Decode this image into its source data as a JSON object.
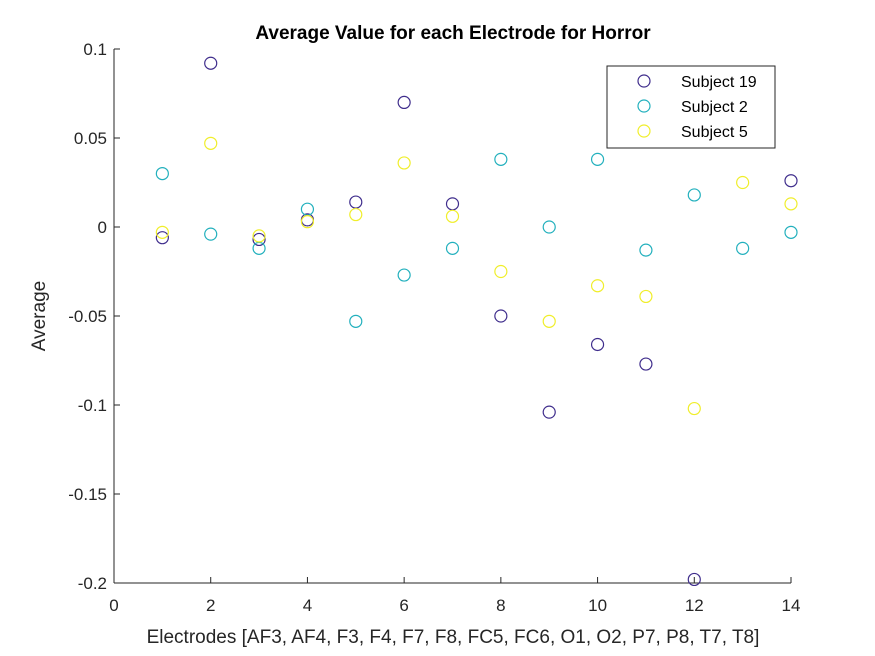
{
  "chart_data": {
    "type": "scatter",
    "title": "Average Value for each Electrode for Horror",
    "xlabel": "Electrodes [AF3, AF4, F3, F4, F7, F8, FC5, FC6, O1, O2, P7, P8, T7, T8]",
    "ylabel": "Average",
    "xlim": [
      0,
      14
    ],
    "ylim": [
      -0.2,
      0.1
    ],
    "xticks": [
      "0",
      "2",
      "4",
      "6",
      "8",
      "10",
      "12",
      "14"
    ],
    "yticks": [
      "0.1",
      "0.05",
      "0",
      "-0.05",
      "-0.1",
      "-0.15",
      "-0.2"
    ],
    "grid": false,
    "legend_position": "top-right",
    "series": [
      {
        "name": "Subject 19",
        "color": "#3f2d8c",
        "x": [
          1,
          2,
          3,
          4,
          5,
          6,
          7,
          8,
          9,
          10,
          11,
          12,
          13,
          14
        ],
        "y": [
          -0.006,
          0.092,
          -0.007,
          0.004,
          0.014,
          0.07,
          0.013,
          -0.05,
          -0.104,
          -0.066,
          -0.077,
          -0.198,
          null,
          0.026
        ]
      },
      {
        "name": "Subject 2",
        "color": "#22b0bd",
        "x": [
          1,
          2,
          3,
          4,
          5,
          6,
          7,
          8,
          9,
          10,
          11,
          12,
          13,
          14
        ],
        "y": [
          0.03,
          -0.004,
          -0.012,
          0.01,
          -0.053,
          -0.027,
          -0.012,
          0.038,
          0.0,
          0.038,
          -0.013,
          0.018,
          -0.012,
          -0.003
        ]
      },
      {
        "name": "Subject 5",
        "color": "#f0ee2a",
        "x": [
          1,
          2,
          3,
          4,
          5,
          6,
          7,
          8,
          9,
          10,
          11,
          12,
          13,
          14
        ],
        "y": [
          -0.003,
          0.047,
          -0.005,
          0.003,
          0.007,
          0.036,
          0.006,
          -0.025,
          -0.053,
          -0.033,
          -0.039,
          -0.102,
          0.025,
          0.013
        ]
      }
    ]
  }
}
